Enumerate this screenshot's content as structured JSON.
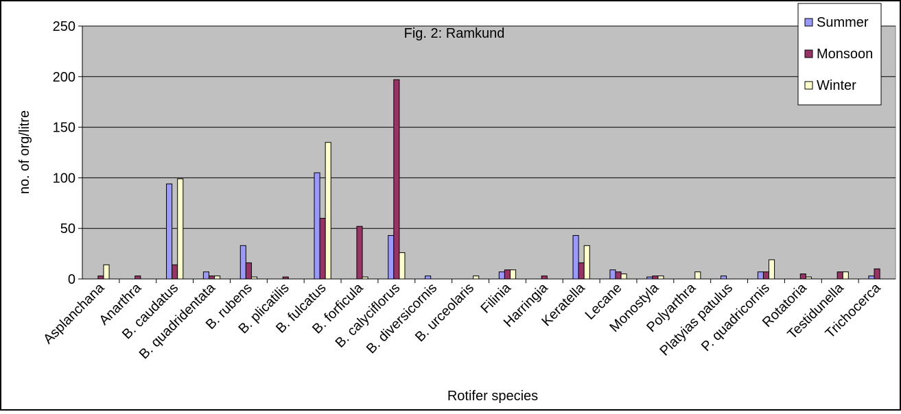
{
  "chart_data": {
    "type": "bar",
    "title": "Fig. 2: Ramkund",
    "xlabel": "Rotifer species",
    "ylabel": "no. of org/litre",
    "ylim": [
      0,
      250
    ],
    "yticks": [
      0,
      50,
      100,
      150,
      200,
      250
    ],
    "grid": true,
    "legend_position": "top-right",
    "categories": [
      "Asplanchana",
      "Anarthra",
      "B. caudatus",
      "B. quadridentata",
      "B. rubens",
      "B. plicatilis",
      "B. fulcatus",
      "B. forficula",
      "B. calyciflorus",
      "B. diversicornis",
      "B. urceolaris",
      "Filinia",
      "Harringia",
      "Keratella",
      "Lecane",
      "Monostyla",
      "Polyarthra",
      "Platyias patulus",
      "P. quadricornis",
      "Rotatoria",
      "Testidunella",
      "Trichocerca"
    ],
    "series": [
      {
        "name": "Summer",
        "color": "#9999ff",
        "values": [
          0,
          0,
          94,
          7,
          33,
          0,
          105,
          0,
          43,
          3,
          0,
          7,
          0,
          43,
          9,
          2,
          0,
          3,
          7,
          0,
          0,
          3
        ]
      },
      {
        "name": "Monsoon",
        "color": "#993366",
        "values": [
          3,
          3,
          14,
          3,
          16,
          2,
          60,
          52,
          197,
          0,
          0,
          9,
          3,
          16,
          7,
          3,
          0,
          0,
          7,
          5,
          7,
          10
        ]
      },
      {
        "name": "Winter",
        "color": "#ffffcc",
        "values": [
          14,
          0,
          99,
          3,
          2,
          0,
          135,
          2,
          26,
          0,
          3,
          9,
          0,
          33,
          5,
          3,
          7,
          0,
          19,
          2,
          7,
          0
        ]
      }
    ]
  }
}
